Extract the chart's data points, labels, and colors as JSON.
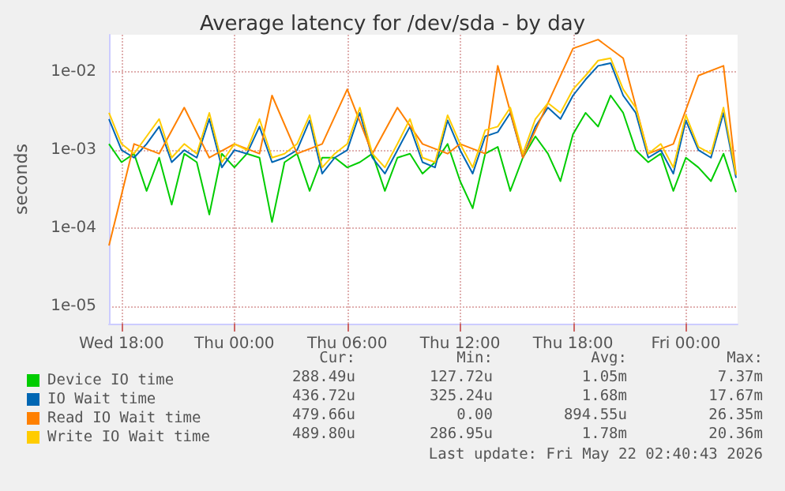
{
  "chart_data": {
    "type": "line",
    "title": "Average latency for /dev/sda - by day",
    "ylabel": "seconds",
    "x": [
      "2026-05-20T17:20",
      "2026-05-20T18:00",
      "2026-05-20T18:40",
      "2026-05-20T19:20",
      "2026-05-20T20:00",
      "2026-05-20T20:40",
      "2026-05-20T21:20",
      "2026-05-20T22:00",
      "2026-05-20T22:40",
      "2026-05-20T23:20",
      "2026-05-21T00:00",
      "2026-05-21T00:40",
      "2026-05-21T01:20",
      "2026-05-21T02:00",
      "2026-05-21T02:40",
      "2026-05-21T03:20",
      "2026-05-21T04:00",
      "2026-05-21T04:40",
      "2026-05-21T05:20",
      "2026-05-21T06:00",
      "2026-05-21T06:40",
      "2026-05-21T07:20",
      "2026-05-21T08:00",
      "2026-05-21T08:40",
      "2026-05-21T09:20",
      "2026-05-21T10:00",
      "2026-05-21T10:40",
      "2026-05-21T11:20",
      "2026-05-21T12:00",
      "2026-05-21T12:40",
      "2026-05-21T13:20",
      "2026-05-21T14:00",
      "2026-05-21T14:40",
      "2026-05-21T15:20",
      "2026-05-21T16:00",
      "2026-05-21T16:40",
      "2026-05-21T17:20",
      "2026-05-21T18:00",
      "2026-05-21T18:40",
      "2026-05-21T19:20",
      "2026-05-21T20:00",
      "2026-05-21T20:40",
      "2026-05-21T21:20",
      "2026-05-21T22:00",
      "2026-05-21T22:40",
      "2026-05-21T23:20",
      "2026-05-22T00:00",
      "2026-05-22T00:40",
      "2026-05-22T01:20",
      "2026-05-22T02:00",
      "2026-05-22T02:40"
    ],
    "series": [
      {
        "name": "Device IO time",
        "color": "#00cc00",
        "values": [
          0.0012,
          0.0007,
          0.0009,
          0.0003,
          0.0008,
          0.0002,
          0.0009,
          0.0007,
          0.00015,
          0.0009,
          0.0006,
          0.0009,
          0.0008,
          0.00012,
          0.0007,
          0.0009,
          0.0003,
          0.0008,
          0.0008,
          0.0006,
          0.0007,
          0.0009,
          0.0003,
          0.0008,
          0.0009,
          0.0005,
          0.0007,
          0.0012,
          0.0004,
          0.00018,
          0.0009,
          0.0011,
          0.0003,
          0.0008,
          0.0015,
          0.0009,
          0.0004,
          0.0016,
          0.003,
          0.002,
          0.005,
          0.003,
          0.001,
          0.0007,
          0.0009,
          0.0003,
          0.0008,
          0.0006,
          0.0004,
          0.0009,
          0.00029
        ]
      },
      {
        "name": "IO Wait time",
        "color": "#0066b3",
        "values": [
          0.0025,
          0.001,
          0.0008,
          0.0012,
          0.002,
          0.0007,
          0.001,
          0.0008,
          0.0025,
          0.0006,
          0.001,
          0.0009,
          0.002,
          0.0007,
          0.0008,
          0.001,
          0.0024,
          0.0005,
          0.0008,
          0.001,
          0.003,
          0.0008,
          0.0005,
          0.001,
          0.002,
          0.0007,
          0.0006,
          0.0024,
          0.001,
          0.0005,
          0.0015,
          0.0017,
          0.003,
          0.0008,
          0.002,
          0.0035,
          0.0025,
          0.005,
          0.008,
          0.012,
          0.013,
          0.005,
          0.003,
          0.0008,
          0.001,
          0.0005,
          0.0024,
          0.001,
          0.0008,
          0.003,
          0.00044
        ]
      },
      {
        "name": "Read IO Wait time",
        "color": "#ff8000",
        "values": [
          6e-05,
          null,
          0.0012,
          null,
          0.0009,
          null,
          0.0035,
          null,
          0.0008,
          null,
          0.0012,
          null,
          0.0009,
          0.005,
          null,
          0.0009,
          null,
          0.0012,
          null,
          0.006,
          null,
          0.0009,
          null,
          0.0035,
          null,
          0.0012,
          null,
          0.0009,
          0.0012,
          null,
          0.0009,
          0.012,
          null,
          0.0008,
          null,
          0.004,
          null,
          0.02,
          null,
          0.026,
          null,
          0.015,
          null,
          0.0009,
          null,
          0.0012,
          null,
          0.009,
          null,
          0.012,
          0.00048
        ]
      },
      {
        "name": "Write IO Wait time",
        "color": "#ffcc00",
        "values": [
          0.003,
          0.0012,
          0.0009,
          0.0015,
          0.0025,
          0.0008,
          0.0012,
          0.0009,
          0.003,
          0.0007,
          0.0012,
          0.001,
          0.0025,
          0.0008,
          0.0009,
          0.0012,
          0.0028,
          0.0006,
          0.0009,
          0.0012,
          0.0035,
          0.0009,
          0.0006,
          0.0012,
          0.0025,
          0.0008,
          0.0007,
          0.0028,
          0.0012,
          0.0006,
          0.0018,
          0.002,
          0.0035,
          0.0009,
          0.0025,
          0.004,
          0.003,
          0.006,
          0.009,
          0.014,
          0.015,
          0.006,
          0.0035,
          0.0009,
          0.0012,
          0.0006,
          0.0028,
          0.0011,
          0.0009,
          0.0035,
          0.00049
        ]
      }
    ],
    "xlim": [
      "2026-05-20T17:20",
      "2026-05-22T02:45"
    ],
    "xticks": [
      {
        "value": "2026-05-20T18:00",
        "label": "Wed 18:00"
      },
      {
        "value": "2026-05-21T00:00",
        "label": "Thu 00:00"
      },
      {
        "value": "2026-05-21T06:00",
        "label": "Thu 06:00"
      },
      {
        "value": "2026-05-21T12:00",
        "label": "Thu 12:00"
      },
      {
        "value": "2026-05-21T18:00",
        "label": "Thu 18:00"
      },
      {
        "value": "2026-05-22T00:00",
        "label": "Fri 00:00"
      }
    ],
    "ylim": [
      6e-06,
      0.03
    ],
    "yticks": [
      {
        "value": 1e-05,
        "label": "1e-05"
      },
      {
        "value": 0.0001,
        "label": "1e-04"
      },
      {
        "value": 0.001,
        "label": "1e-03"
      },
      {
        "value": 0.01,
        "label": "1e-02"
      }
    ],
    "log": "y",
    "grid": true,
    "legend": "bottom left",
    "marker": "none",
    "line_style": "solid",
    "annotations": [
      "Cur:",
      "Min:",
      "Avg:",
      "Max:",
      "288.49u",
      "127.72u",
      "1.05m",
      "7.37m",
      "436.72u",
      "325.24u",
      "1.68m",
      "17.67m",
      "479.66u",
      "0.00",
      "894.55u",
      "26.35m",
      "489.80u",
      "286.95u",
      "1.78m",
      "20.36m",
      "Last update: Fri May 22 02:40:43 2026"
    ]
  }
}
